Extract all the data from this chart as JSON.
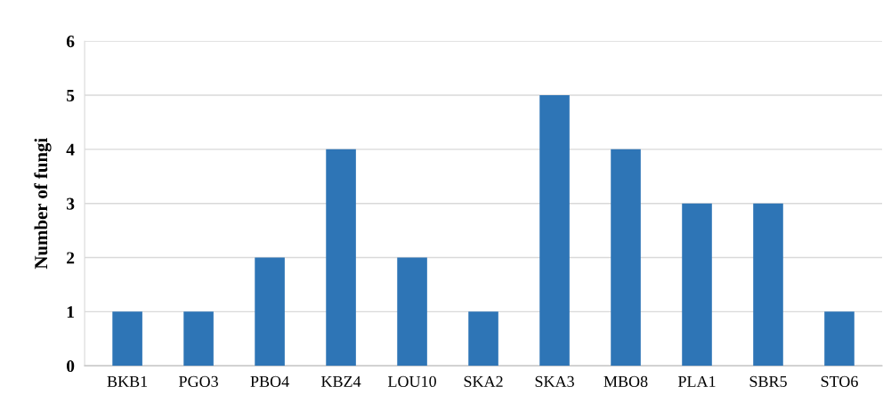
{
  "chart_data": {
    "type": "bar",
    "ylabel": "Number of fungi",
    "categories": [
      "BKB1",
      "PGO3",
      "PBO4",
      "KBZ4",
      "LOU10",
      "SKA2",
      "SKA3",
      "MBO8",
      "PLA1",
      "SBR5",
      "STO6"
    ],
    "values": [
      1,
      1,
      2,
      4,
      2,
      1,
      5,
      4,
      3,
      3,
      1
    ],
    "color": "#2e75b6",
    "ylim": [
      0,
      6
    ],
    "yticks": [
      0,
      1,
      2,
      3,
      4,
      5,
      6
    ],
    "grid": "y"
  }
}
